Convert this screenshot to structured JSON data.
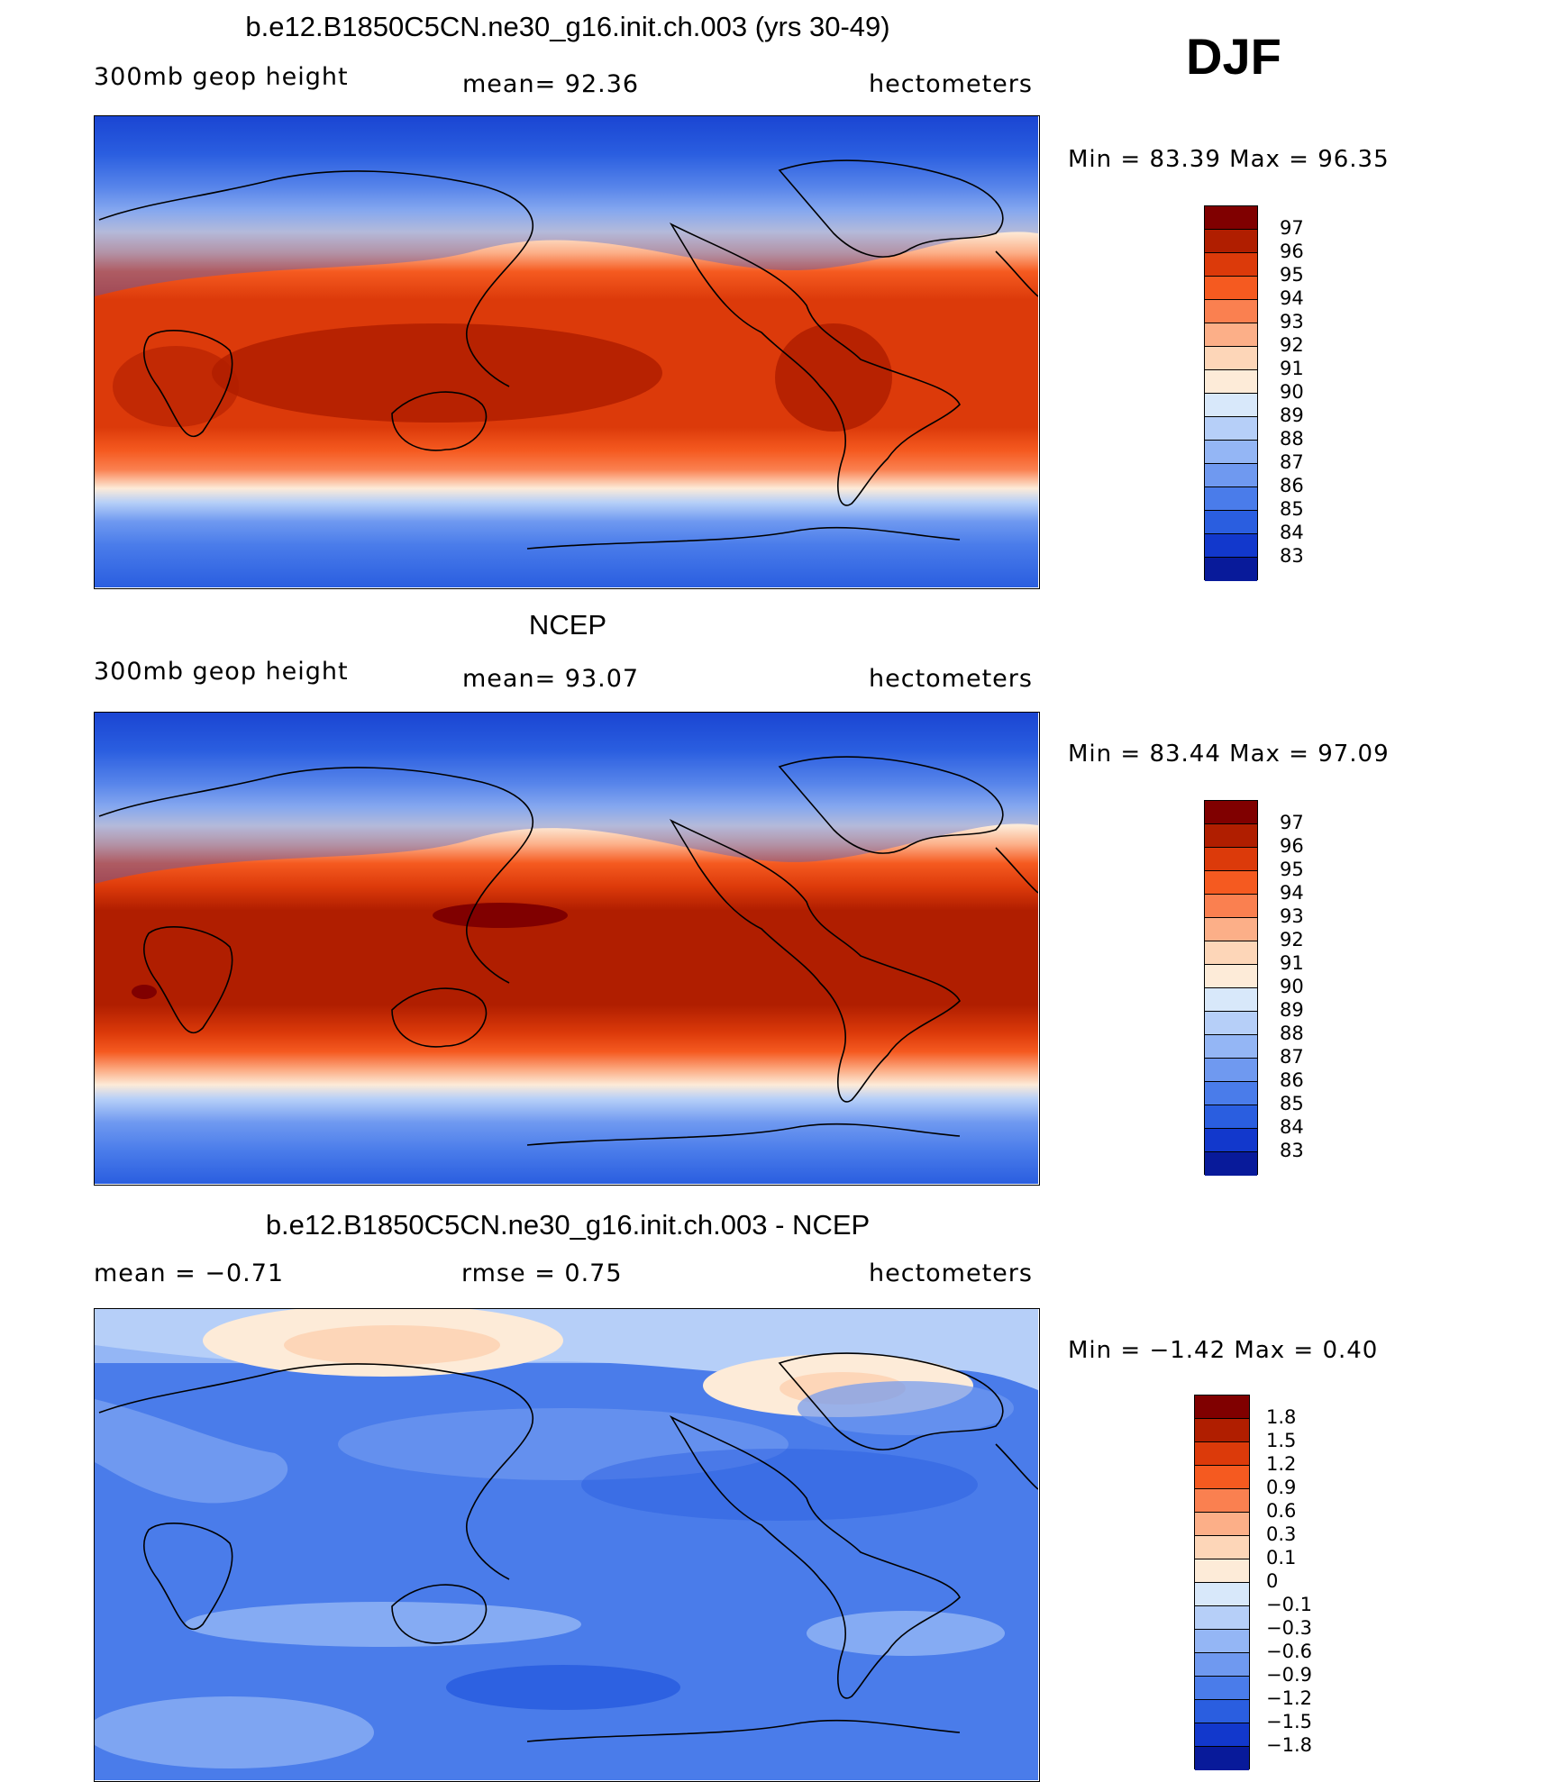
{
  "season": "DJF",
  "panels": [
    {
      "title": "b.e12.B1850C5CN.ne30_g16.init.ch.003 (yrs 30-49)",
      "left_label": "300mb  geop  height",
      "center_label": "mean=  92.36",
      "right_label": "hectometers",
      "minmax": "Min  =   83.39  Max  =   96.35",
      "colorbar_labels": [
        "97",
        "96",
        "95",
        "94",
        "93",
        "92",
        "91",
        "90",
        "89",
        "88",
        "87",
        "86",
        "85",
        "84",
        "83"
      ]
    },
    {
      "title": "NCEP",
      "left_label": "300mb  geop  height",
      "center_label": "mean=  93.07",
      "right_label": "hectometers",
      "minmax": "Min  =   83.44  Max  =   97.09",
      "colorbar_labels": [
        "97",
        "96",
        "95",
        "94",
        "93",
        "92",
        "91",
        "90",
        "89",
        "88",
        "87",
        "86",
        "85",
        "84",
        "83"
      ]
    },
    {
      "title": "b.e12.B1850C5CN.ne30_g16.init.ch.003 - NCEP",
      "left_label": "mean  =   −0.71",
      "center_label": "rmse  =    0.75",
      "right_label": "hectometers",
      "minmax": "Min  =   −1.42  Max  =    0.40",
      "colorbar_labels": [
        "1.8",
        "1.5",
        "1.2",
        "0.9",
        "0.6",
        "0.3",
        "0.1",
        "0",
        "−0.1",
        "−0.3",
        "−0.6",
        "−0.9",
        "−1.2",
        "−1.5",
        "−1.8"
      ]
    }
  ],
  "palettes": {
    "abs": [
      "#800000",
      "#b01e00",
      "#dc3a0a",
      "#f55a20",
      "#fa8050",
      "#fcaf88",
      "#fdd6b8",
      "#fdebd8",
      "#d8e8fa",
      "#b6cff8",
      "#94b6f5",
      "#6f99f0",
      "#4a7cea",
      "#2a5ee0",
      "#1238cc",
      "#081a9a"
    ],
    "diff": [
      "#800000",
      "#b01e00",
      "#dc3a0a",
      "#f55a20",
      "#fa8050",
      "#fcaf88",
      "#fdd6b8",
      "#fdebd8",
      "#d8e8fa",
      "#b6cff8",
      "#94b6f5",
      "#6f99f0",
      "#4a7cea",
      "#2a5ee0",
      "#1238cc",
      "#081a9a"
    ]
  }
}
